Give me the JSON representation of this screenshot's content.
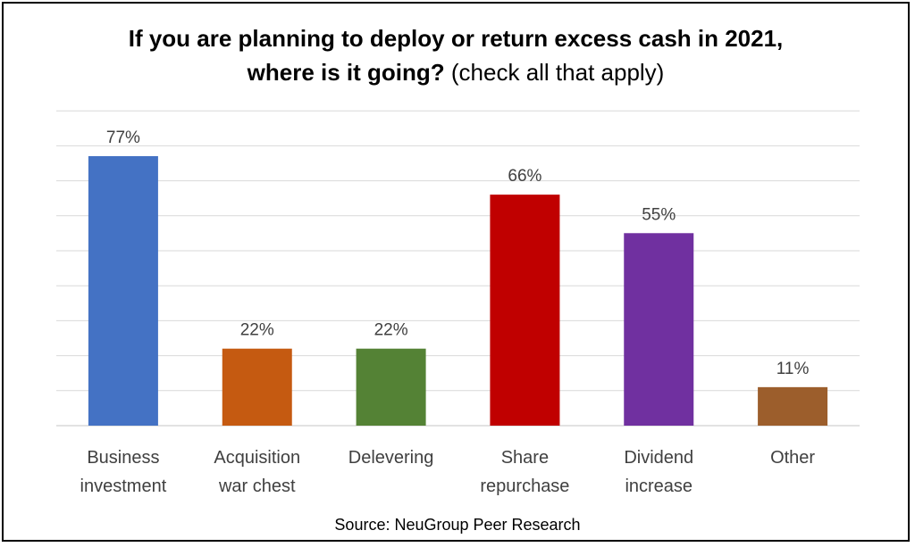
{
  "chart_data": {
    "type": "bar",
    "title_line1": "If you are planning to deploy or return excess cash in 2021,",
    "title_line2_bold": "where is it going?",
    "title_line2_normal": "(check all that apply)",
    "categories": [
      [
        "Business",
        "investment"
      ],
      [
        "Acquisition",
        "war chest"
      ],
      [
        "Delevering"
      ],
      [
        "Share",
        "repurchase"
      ],
      [
        "Dividend",
        "increase"
      ],
      [
        "Other"
      ]
    ],
    "values": [
      77,
      22,
      22,
      66,
      55,
      11
    ],
    "value_labels": [
      "77%",
      "22%",
      "22%",
      "66%",
      "55%",
      "11%"
    ],
    "colors": [
      "#4472C4",
      "#C55A11",
      "#548235",
      "#C00000",
      "#7030A0",
      "#9C5E2C"
    ],
    "ylim": [
      0,
      90
    ],
    "grid": true,
    "source": "Source: NeuGroup Peer Research"
  }
}
